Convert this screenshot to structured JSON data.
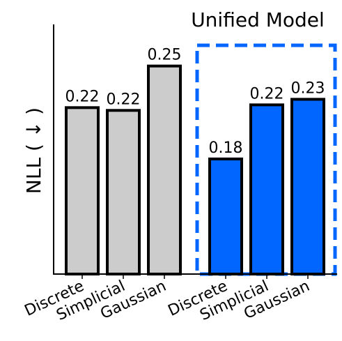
{
  "chart_data": {
    "type": "bar",
    "annotation": "Unified Model",
    "y_label": "NLL ( ↓ )",
    "categories": [
      "Discrete",
      "Simplicial",
      "Gaussian",
      "Discrete",
      "Simplicial",
      "Gaussian"
    ],
    "values": [
      0.22,
      0.218,
      0.25,
      0.183,
      0.222,
      0.226
    ],
    "value_labels": [
      "0.22",
      "0.22",
      "0.25",
      "0.18",
      "0.22",
      "0.23"
    ],
    "colors": [
      "#cccccc",
      "#cccccc",
      "#cccccc",
      "#0066ff",
      "#0066ff",
      "#0066ff"
    ],
    "ylim": [
      0.1,
      0.28
    ]
  }
}
